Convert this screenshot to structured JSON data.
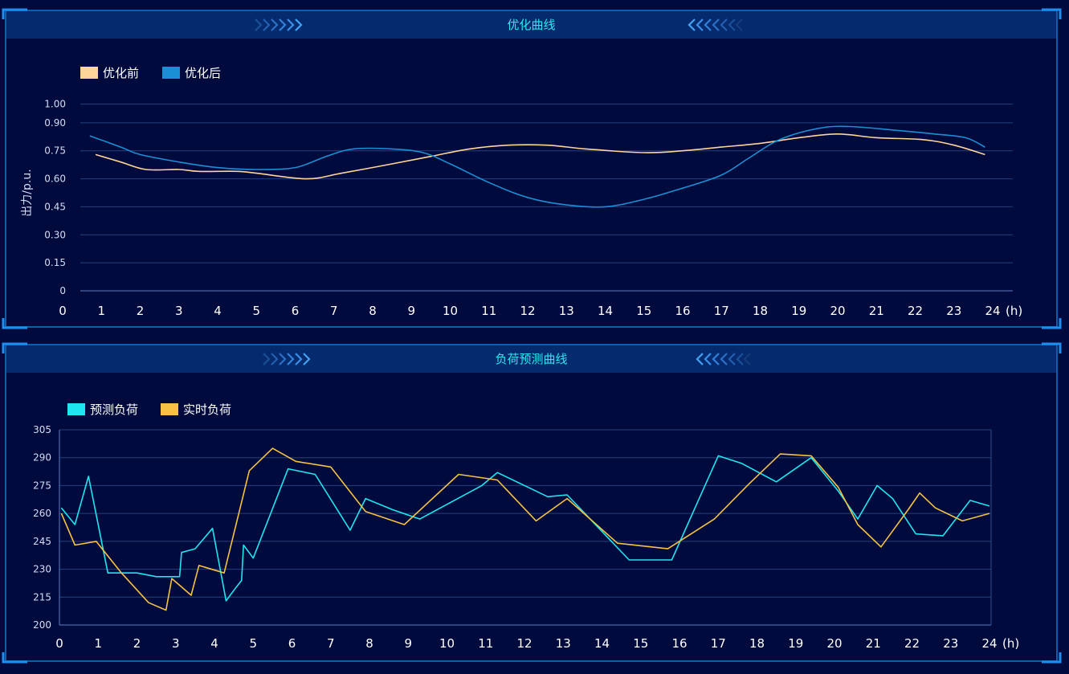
{
  "panels": [
    {
      "title": "优化曲线",
      "chart_data": {
        "type": "line",
        "title": "优化曲线",
        "xlabel": "(h)",
        "ylabel": "出力/p.u.",
        "xlim": [
          0,
          24
        ],
        "ylim": [
          0,
          1.05
        ],
        "x_ticks": [
          "0",
          "1",
          "2",
          "3",
          "4",
          "5",
          "6",
          "7",
          "8",
          "9",
          "10",
          "11",
          "12",
          "13",
          "14",
          "15",
          "16",
          "17",
          "18",
          "19",
          "20",
          "21",
          "22",
          "23",
          "24"
        ],
        "y_ticks": [
          "0",
          "0.15",
          "0.30",
          "0.45",
          "0.60",
          "0.75",
          "0.90",
          "1.00"
        ],
        "y_tick_values": [
          0,
          0.15,
          0.3,
          0.45,
          0.6,
          0.75,
          0.9,
          1.0
        ],
        "legend_position": "top-left",
        "grid": true,
        "series": [
          {
            "name": "优化前",
            "color": "#ffd59a",
            "points": [
              [
                0.85,
                0.73
              ],
              [
                1.5,
                0.69
              ],
              [
                2.15,
                0.65
              ],
              [
                3,
                0.65
              ],
              [
                3.5,
                0.64
              ],
              [
                4.5,
                0.64
              ],
              [
                5,
                0.63
              ],
              [
                6.3,
                0.6
              ],
              [
                7.2,
                0.63
              ],
              [
                8.5,
                0.68
              ],
              [
                9.5,
                0.72
              ],
              [
                10.5,
                0.76
              ],
              [
                11.5,
                0.78
              ],
              [
                12.5,
                0.78
              ],
              [
                13.5,
                0.76
              ],
              [
                15,
                0.74
              ],
              [
                16,
                0.75
              ],
              [
                17,
                0.77
              ],
              [
                18,
                0.79
              ],
              [
                19,
                0.82
              ],
              [
                20,
                0.84
              ],
              [
                21,
                0.82
              ],
              [
                22.2,
                0.81
              ],
              [
                23,
                0.78
              ],
              [
                23.8,
                0.73
              ]
            ]
          },
          {
            "name": "优化后",
            "color": "#1a8fd6",
            "points": [
              [
                0.7,
                0.83
              ],
              [
                1.5,
                0.77
              ],
              [
                2,
                0.73
              ],
              [
                3,
                0.69
              ],
              [
                4,
                0.66
              ],
              [
                5,
                0.65
              ],
              [
                6,
                0.66
              ],
              [
                6.8,
                0.72
              ],
              [
                7.5,
                0.76
              ],
              [
                8.5,
                0.76
              ],
              [
                9.3,
                0.74
              ],
              [
                10,
                0.68
              ],
              [
                11,
                0.58
              ],
              [
                12,
                0.5
              ],
              [
                13,
                0.46
              ],
              [
                14,
                0.45
              ],
              [
                15,
                0.49
              ],
              [
                16,
                0.55
              ],
              [
                17,
                0.62
              ],
              [
                17.7,
                0.71
              ],
              [
                18.5,
                0.81
              ],
              [
                19.5,
                0.87
              ],
              [
                20.3,
                0.88
              ],
              [
                21.5,
                0.86
              ],
              [
                22.5,
                0.84
              ],
              [
                23.3,
                0.82
              ],
              [
                23.8,
                0.77
              ]
            ]
          }
        ]
      }
    },
    {
      "title": "负荷预测曲线",
      "chart_data": {
        "type": "line",
        "title": "负荷预测曲线",
        "xlabel": "(h)",
        "ylabel": "",
        "xlim": [
          0,
          24
        ],
        "ylim": [
          200,
          305
        ],
        "x_ticks": [
          "0",
          "1",
          "2",
          "3",
          "4",
          "5",
          "6",
          "7",
          "8",
          "9",
          "10",
          "11",
          "12",
          "13",
          "14",
          "15",
          "16",
          "17",
          "18",
          "19",
          "20",
          "21",
          "22",
          "23",
          "24"
        ],
        "y_ticks": [
          "200",
          "215",
          "230",
          "245",
          "260",
          "275",
          "290",
          "305"
        ],
        "y_tick_values": [
          200,
          215,
          230,
          245,
          260,
          275,
          290,
          305
        ],
        "legend_position": "top-left",
        "grid": true,
        "series": [
          {
            "name": "预测负荷",
            "color": "#1ee6f0",
            "points": [
              [
                0.05,
                263
              ],
              [
                0.4,
                254
              ],
              [
                0.75,
                280
              ],
              [
                1.25,
                228
              ],
              [
                2,
                228
              ],
              [
                2.5,
                226
              ],
              [
                3.1,
                226
              ],
              [
                3.15,
                239
              ],
              [
                3.5,
                241
              ],
              [
                3.95,
                252
              ],
              [
                4.3,
                213
              ],
              [
                4.55,
                220
              ],
              [
                4.7,
                224
              ],
              [
                4.75,
                243
              ],
              [
                5,
                236
              ],
              [
                5.9,
                284
              ],
              [
                6.6,
                281
              ],
              [
                7.5,
                251
              ],
              [
                7.9,
                268
              ],
              [
                8.6,
                262
              ],
              [
                9.3,
                257
              ],
              [
                10.9,
                275
              ],
              [
                11.3,
                282
              ],
              [
                12.6,
                269
              ],
              [
                13.1,
                270
              ],
              [
                14.7,
                235
              ],
              [
                15.8,
                235
              ],
              [
                17,
                291
              ],
              [
                17.6,
                287
              ],
              [
                18.5,
                277
              ],
              [
                19.4,
                290
              ],
              [
                20.1,
                272
              ],
              [
                20.6,
                257
              ],
              [
                21.1,
                275
              ],
              [
                21.5,
                268
              ],
              [
                22.1,
                249
              ],
              [
                22.8,
                248
              ],
              [
                23.5,
                267
              ],
              [
                24,
                264
              ]
            ]
          },
          {
            "name": "实时负荷",
            "color": "#f5c242",
            "points": [
              [
                0.05,
                260
              ],
              [
                0.4,
                243
              ],
              [
                0.95,
                245
              ],
              [
                1.6,
                228
              ],
              [
                2.3,
                212
              ],
              [
                2.75,
                208
              ],
              [
                2.9,
                225
              ],
              [
                3.4,
                216
              ],
              [
                3.6,
                232
              ],
              [
                4.25,
                228
              ],
              [
                4.9,
                283
              ],
              [
                5.5,
                295
              ],
              [
                6.1,
                288
              ],
              [
                7,
                285
              ],
              [
                7.9,
                261
              ],
              [
                8.9,
                254
              ],
              [
                10.3,
                281
              ],
              [
                11.3,
                278
              ],
              [
                12.3,
                256
              ],
              [
                13.1,
                268
              ],
              [
                14.4,
                244
              ],
              [
                15.7,
                241
              ],
              [
                16.9,
                257
              ],
              [
                17.8,
                276
              ],
              [
                18.6,
                292
              ],
              [
                19.4,
                291
              ],
              [
                20.1,
                274
              ],
              [
                20.6,
                254
              ],
              [
                21.2,
                242
              ],
              [
                21.9,
                262
              ],
              [
                22.2,
                271
              ],
              [
                22.6,
                263
              ],
              [
                23.3,
                256
              ],
              [
                24,
                260
              ]
            ]
          }
        ]
      }
    }
  ]
}
